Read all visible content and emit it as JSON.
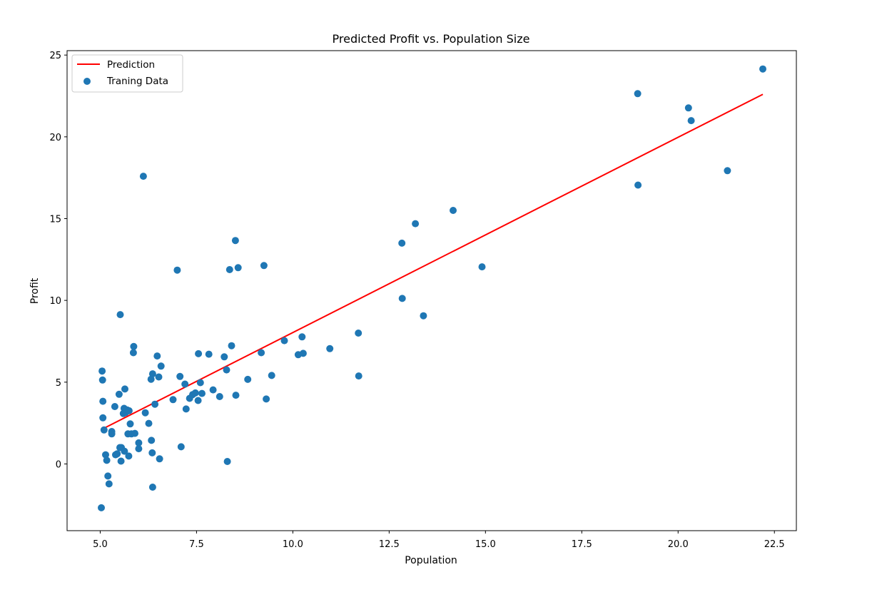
{
  "chart_data": {
    "type": "scatter",
    "title": "Predicted Profit vs. Population Size",
    "xlabel": "Population",
    "ylabel": "Profit",
    "xlim": [
      4.14,
      23.07
    ],
    "ylim": [
      -4.08,
      25.27
    ],
    "xticks": [
      5.0,
      7.5,
      10.0,
      12.5,
      15.0,
      17.5,
      20.0,
      22.5
    ],
    "xtick_labels": [
      "5.0",
      "7.5",
      "10.0",
      "12.5",
      "15.0",
      "17.5",
      "20.0",
      "22.5"
    ],
    "yticks": [
      0,
      5,
      10,
      15,
      20,
      25
    ],
    "ytick_labels": [
      "0",
      "5",
      "10",
      "15",
      "20",
      "25"
    ],
    "grid": false,
    "legend_position": "upper-left",
    "series": [
      {
        "name": "Prediction",
        "kind": "line",
        "color": "#ff0000",
        "x": [
          5.03,
          22.2
        ],
        "y": [
          2.1,
          22.6
        ]
      },
      {
        "name": "Traning Data",
        "kind": "scatter",
        "color": "#1f77b4",
        "points": [
          [
            5.03,
            -2.68
          ],
          [
            5.05,
            5.68
          ],
          [
            5.06,
            5.13
          ],
          [
            5.07,
            3.83
          ],
          [
            5.07,
            2.82
          ],
          [
            5.1,
            2.08
          ],
          [
            5.14,
            0.56
          ],
          [
            5.17,
            0.22
          ],
          [
            5.2,
            -0.74
          ],
          [
            5.23,
            -1.22
          ],
          [
            5.3,
            1.98
          ],
          [
            5.3,
            1.84
          ],
          [
            5.38,
            3.51
          ],
          [
            5.4,
            0.56
          ],
          [
            5.44,
            0.62
          ],
          [
            5.49,
            4.26
          ],
          [
            5.51,
            1.0
          ],
          [
            5.52,
            9.13
          ],
          [
            5.54,
            0.17
          ],
          [
            5.55,
            1.0
          ],
          [
            5.6,
            3.08
          ],
          [
            5.62,
            3.4
          ],
          [
            5.63,
            0.78
          ],
          [
            5.64,
            4.58
          ],
          [
            5.66,
            3.14
          ],
          [
            5.7,
            3.3
          ],
          [
            5.72,
            1.84
          ],
          [
            5.74,
            0.48
          ],
          [
            5.75,
            3.25
          ],
          [
            5.78,
            2.45
          ],
          [
            5.81,
            1.84
          ],
          [
            5.86,
            6.8
          ],
          [
            5.87,
            7.18
          ],
          [
            5.9,
            1.87
          ],
          [
            6.0,
            1.29
          ],
          [
            6.0,
            0.93
          ],
          [
            6.12,
            17.59
          ],
          [
            6.17,
            3.13
          ],
          [
            6.26,
            2.48
          ],
          [
            6.32,
            5.18
          ],
          [
            6.33,
            1.44
          ],
          [
            6.35,
            0.68
          ],
          [
            6.36,
            -1.42
          ],
          [
            6.36,
            5.51
          ],
          [
            6.42,
            3.65
          ],
          [
            6.48,
            6.6
          ],
          [
            6.52,
            5.32
          ],
          [
            6.54,
            0.31
          ],
          [
            6.58,
            5.98
          ],
          [
            6.89,
            3.93
          ],
          [
            7.0,
            11.85
          ],
          [
            7.07,
            5.35
          ],
          [
            7.1,
            1.05
          ],
          [
            7.2,
            4.88
          ],
          [
            7.23,
            3.36
          ],
          [
            7.32,
            4.01
          ],
          [
            7.4,
            4.24
          ],
          [
            7.47,
            4.34
          ],
          [
            7.54,
            3.88
          ],
          [
            7.55,
            6.74
          ],
          [
            7.6,
            4.97
          ],
          [
            7.64,
            4.31
          ],
          [
            7.82,
            6.71
          ],
          [
            7.93,
            4.53
          ],
          [
            8.1,
            4.12
          ],
          [
            8.22,
            6.55
          ],
          [
            8.28,
            5.75
          ],
          [
            8.3,
            0.15
          ],
          [
            8.36,
            11.88
          ],
          [
            8.41,
            7.23
          ],
          [
            8.51,
            13.66
          ],
          [
            8.52,
            4.2
          ],
          [
            8.58,
            12.0
          ],
          [
            8.83,
            5.17
          ],
          [
            9.18,
            6.8
          ],
          [
            9.25,
            12.13
          ],
          [
            9.31,
            3.97
          ],
          [
            9.45,
            5.41
          ],
          [
            9.78,
            7.54
          ],
          [
            10.14,
            6.68
          ],
          [
            10.24,
            7.77
          ],
          [
            10.27,
            6.76
          ],
          [
            10.96,
            7.05
          ],
          [
            11.7,
            8.0
          ],
          [
            11.71,
            5.38
          ],
          [
            12.83,
            13.5
          ],
          [
            12.84,
            10.12
          ],
          [
            13.18,
            14.69
          ],
          [
            13.39,
            9.06
          ],
          [
            14.16,
            15.5
          ],
          [
            14.91,
            12.05
          ],
          [
            18.95,
            22.64
          ],
          [
            18.96,
            17.05
          ],
          [
            20.27,
            21.77
          ],
          [
            20.34,
            20.99
          ],
          [
            21.28,
            17.93
          ],
          [
            22.2,
            24.15
          ]
        ]
      }
    ]
  }
}
